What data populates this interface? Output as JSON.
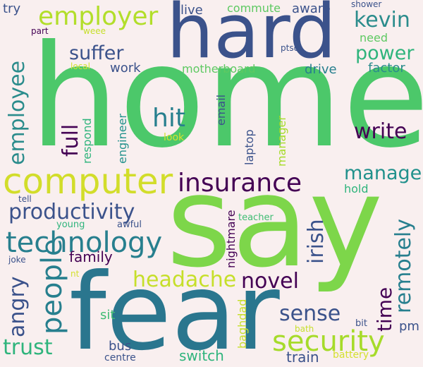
{
  "colors": {
    "background": "#f9efef",
    "palette": [
      "#440154",
      "#3b528b",
      "#21918c",
      "#5ec962",
      "#d4e030",
      "#277f8e"
    ]
  },
  "words": [
    {
      "id": "home",
      "text": "home"
    },
    {
      "id": "say",
      "text": "say"
    },
    {
      "id": "fear",
      "text": "fear"
    },
    {
      "id": "hard",
      "text": "hard"
    },
    {
      "id": "computer",
      "text": "computer"
    },
    {
      "id": "insurance",
      "text": "insurance"
    },
    {
      "id": "technology",
      "text": "technology"
    },
    {
      "id": "productivity",
      "text": "productivity"
    },
    {
      "id": "security",
      "text": "security"
    },
    {
      "id": "employer",
      "text": "employer"
    },
    {
      "id": "employee",
      "text": "employee"
    },
    {
      "id": "trust",
      "text": "trust"
    },
    {
      "id": "people",
      "text": "people"
    },
    {
      "id": "headache",
      "text": "headache"
    },
    {
      "id": "novel",
      "text": "novel"
    },
    {
      "id": "sense",
      "text": "sense"
    },
    {
      "id": "write",
      "text": "write"
    },
    {
      "id": "manage",
      "text": "manage"
    },
    {
      "id": "suffer",
      "text": "suffer"
    },
    {
      "id": "power",
      "text": "power"
    },
    {
      "id": "kevin",
      "text": "kevin"
    },
    {
      "id": "hit",
      "text": "hit"
    },
    {
      "id": "full",
      "text": "full"
    },
    {
      "id": "irish",
      "text": "irish"
    },
    {
      "id": "angry",
      "text": "angry"
    },
    {
      "id": "remotely",
      "text": "remotely"
    },
    {
      "id": "time",
      "text": "time"
    },
    {
      "id": "family",
      "text": "family"
    },
    {
      "id": "switch",
      "text": "switch"
    },
    {
      "id": "train",
      "text": "train"
    },
    {
      "id": "bus",
      "text": "bus"
    },
    {
      "id": "sit",
      "text": "sit"
    },
    {
      "id": "work",
      "text": "work"
    },
    {
      "id": "drive",
      "text": "drive"
    },
    {
      "id": "factor",
      "text": "factor"
    },
    {
      "id": "need",
      "text": "need"
    },
    {
      "id": "hold",
      "text": "hold"
    },
    {
      "id": "motherboard",
      "text": "motherboard"
    },
    {
      "id": "live",
      "text": "live"
    },
    {
      "id": "aware",
      "text": "aware"
    },
    {
      "id": "commute",
      "text": "commute"
    },
    {
      "id": "try",
      "text": "try"
    },
    {
      "id": "part",
      "text": "part"
    },
    {
      "id": "weee",
      "text": "weee"
    },
    {
      "id": "shower",
      "text": "shower"
    },
    {
      "id": "local",
      "text": "local"
    },
    {
      "id": "ptsd",
      "text": "ptsd"
    },
    {
      "id": "email",
      "text": "email"
    },
    {
      "id": "laptop",
      "text": "laptop"
    },
    {
      "id": "manager",
      "text": "manager"
    },
    {
      "id": "respond",
      "text": "respond"
    },
    {
      "id": "engineer",
      "text": "engineer"
    },
    {
      "id": "look",
      "text": "look"
    },
    {
      "id": "nightmare",
      "text": "nightmare"
    },
    {
      "id": "teacher",
      "text": "teacher"
    },
    {
      "id": "tell",
      "text": "tell"
    },
    {
      "id": "young",
      "text": "young"
    },
    {
      "id": "awful",
      "text": "awful"
    },
    {
      "id": "joke",
      "text": "joke"
    },
    {
      "id": "nt",
      "text": "nt"
    },
    {
      "id": "baghdad",
      "text": "baghdad"
    },
    {
      "id": "bath",
      "text": "bath"
    },
    {
      "id": "bit",
      "text": "bit"
    },
    {
      "id": "pm",
      "text": "pm"
    },
    {
      "id": "battery",
      "text": "battery"
    },
    {
      "id": "centre",
      "text": "centre"
    }
  ]
}
